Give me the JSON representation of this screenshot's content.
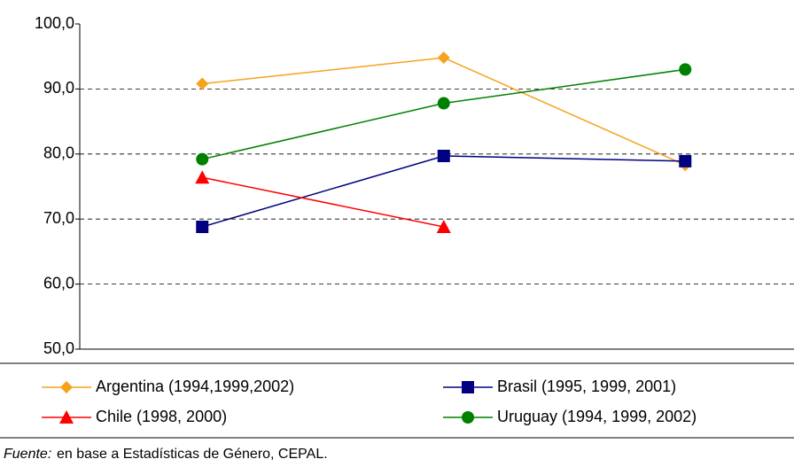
{
  "chart_data": {
    "type": "line",
    "categories": [
      null,
      null,
      null
    ],
    "series": [
      {
        "name": "Argentina (1994,1999,2002)",
        "color": "#f7a21b",
        "marker": "diamond",
        "values": [
          90.8,
          94.8,
          78.3
        ]
      },
      {
        "name": "Brasil (1995, 1999, 2001)",
        "color": "#000080",
        "marker": "square",
        "values": [
          68.8,
          79.7,
          78.9
        ]
      },
      {
        "name": "Chile (1998, 2000)",
        "color": "#ff0000",
        "marker": "triangle",
        "values": [
          76.4,
          68.8,
          null
        ]
      },
      {
        "name": "Uruguay (1994, 1999, 2002)",
        "color": "#008000",
        "marker": "circle",
        "values": [
          79.2,
          87.8,
          93.0
        ]
      }
    ],
    "ylim": [
      50,
      100
    ],
    "yticks": [
      {
        "value": 50,
        "label": "50,0"
      },
      {
        "value": 60,
        "label": "60,0"
      },
      {
        "value": 70,
        "label": "70,0"
      },
      {
        "value": 80,
        "label": "80,0"
      },
      {
        "value": 90,
        "label": "90,0"
      },
      {
        "value": 100,
        "label": "100,0"
      }
    ],
    "grid": true,
    "legend": "bottom",
    "source_label": "Fuente:",
    "source_text": "en base a Estadísticas de Género, CEPAL."
  }
}
